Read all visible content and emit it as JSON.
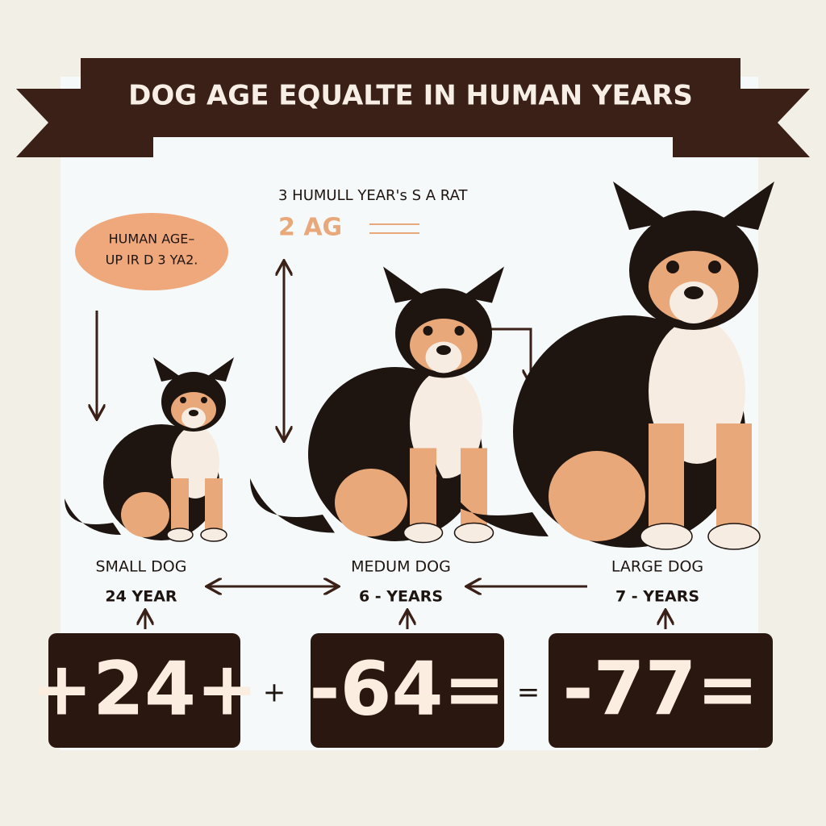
{
  "banner": {
    "title": "DOG AGE EQUALTE IN HUMAN YEARS"
  },
  "note": {
    "line1": "3 HUMULL YEAR's S A RAT",
    "line2": "2 AG"
  },
  "bubble": {
    "line1": "HUMAN AGE–",
    "line2": "UP IR D 3 YA2."
  },
  "dogs": [
    {
      "label": "SMALL DOG",
      "age": "24 YEAR",
      "box": "+24+"
    },
    {
      "label": "MEDUM DOG",
      "age": "6 - YEARS",
      "box": "-64="
    },
    {
      "label": "LARGE DOG",
      "age": "7 - YEARS",
      "box": "-77="
    }
  ],
  "operators": [
    "+",
    "="
  ]
}
